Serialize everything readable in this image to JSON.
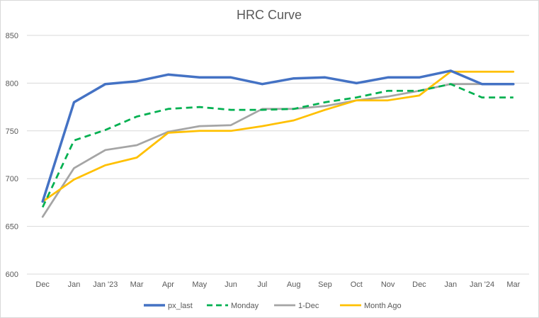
{
  "chart_data": {
    "type": "line",
    "title": "HRC Curve",
    "xlabel": "",
    "ylabel": "",
    "categories": [
      "Dec",
      "Jan",
      "Jan '23",
      "Mar",
      "Apr",
      "May",
      "Jun",
      "Jul",
      "Aug",
      "Sep",
      "Oct",
      "Nov",
      "Dec",
      "Jan",
      "Jan '24",
      "Mar"
    ],
    "ylim": [
      600,
      850
    ],
    "yticks": [
      600,
      650,
      700,
      750,
      800,
      850
    ],
    "grid": true,
    "legend_position": "bottom",
    "series": [
      {
        "name": "px_last",
        "color": "#4472C4",
        "dash": "solid",
        "values": [
          676,
          780,
          799,
          802,
          809,
          806,
          806,
          799,
          805,
          806,
          800,
          806,
          806,
          813,
          799,
          799
        ]
      },
      {
        "name": "Monday",
        "color": "#00B050",
        "dash": "dashed",
        "values": [
          670,
          740,
          751,
          765,
          773,
          775,
          772,
          772,
          773,
          780,
          785,
          792,
          792,
          799,
          785,
          785
        ]
      },
      {
        "name": "1-Dec",
        "color": "#A5A5A5",
        "dash": "solid",
        "values": [
          660,
          711,
          730,
          735,
          749,
          755,
          756,
          773,
          773,
          776,
          782,
          786,
          792,
          799,
          799,
          799
        ]
      },
      {
        "name": "Month Ago",
        "color": "#FFC000",
        "dash": "solid",
        "values": [
          676,
          699,
          714,
          722,
          748,
          750,
          750,
          755,
          761,
          772,
          782,
          782,
          787,
          812,
          812,
          812
        ]
      }
    ]
  }
}
